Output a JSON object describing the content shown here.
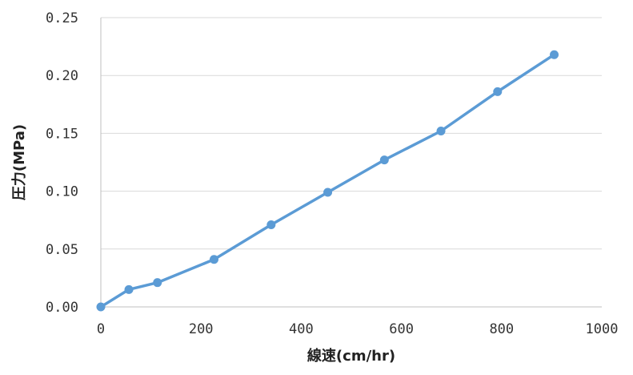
{
  "chart_data": {
    "type": "line",
    "title": "",
    "xlabel": "線速(cm/hr)",
    "ylabel": "圧力(MPa)",
    "xlim": [
      0,
      1000
    ],
    "ylim": [
      0,
      0.25
    ],
    "x_ticks": [
      "0",
      "200",
      "400",
      "600",
      "800",
      "1000"
    ],
    "y_ticks": [
      "0.00",
      "0.05",
      "0.10",
      "0.15",
      "0.20",
      "0.25"
    ],
    "grid": true,
    "legend": "none",
    "series": [
      {
        "color": "#5b9bd5",
        "marker": "circle",
        "x": [
          0,
          56,
          113,
          226,
          340,
          453,
          566,
          679,
          792,
          905
        ],
        "y": [
          0.0,
          0.015,
          0.021,
          0.041,
          0.071,
          0.099,
          0.127,
          0.152,
          0.186,
          0.218
        ]
      }
    ]
  }
}
